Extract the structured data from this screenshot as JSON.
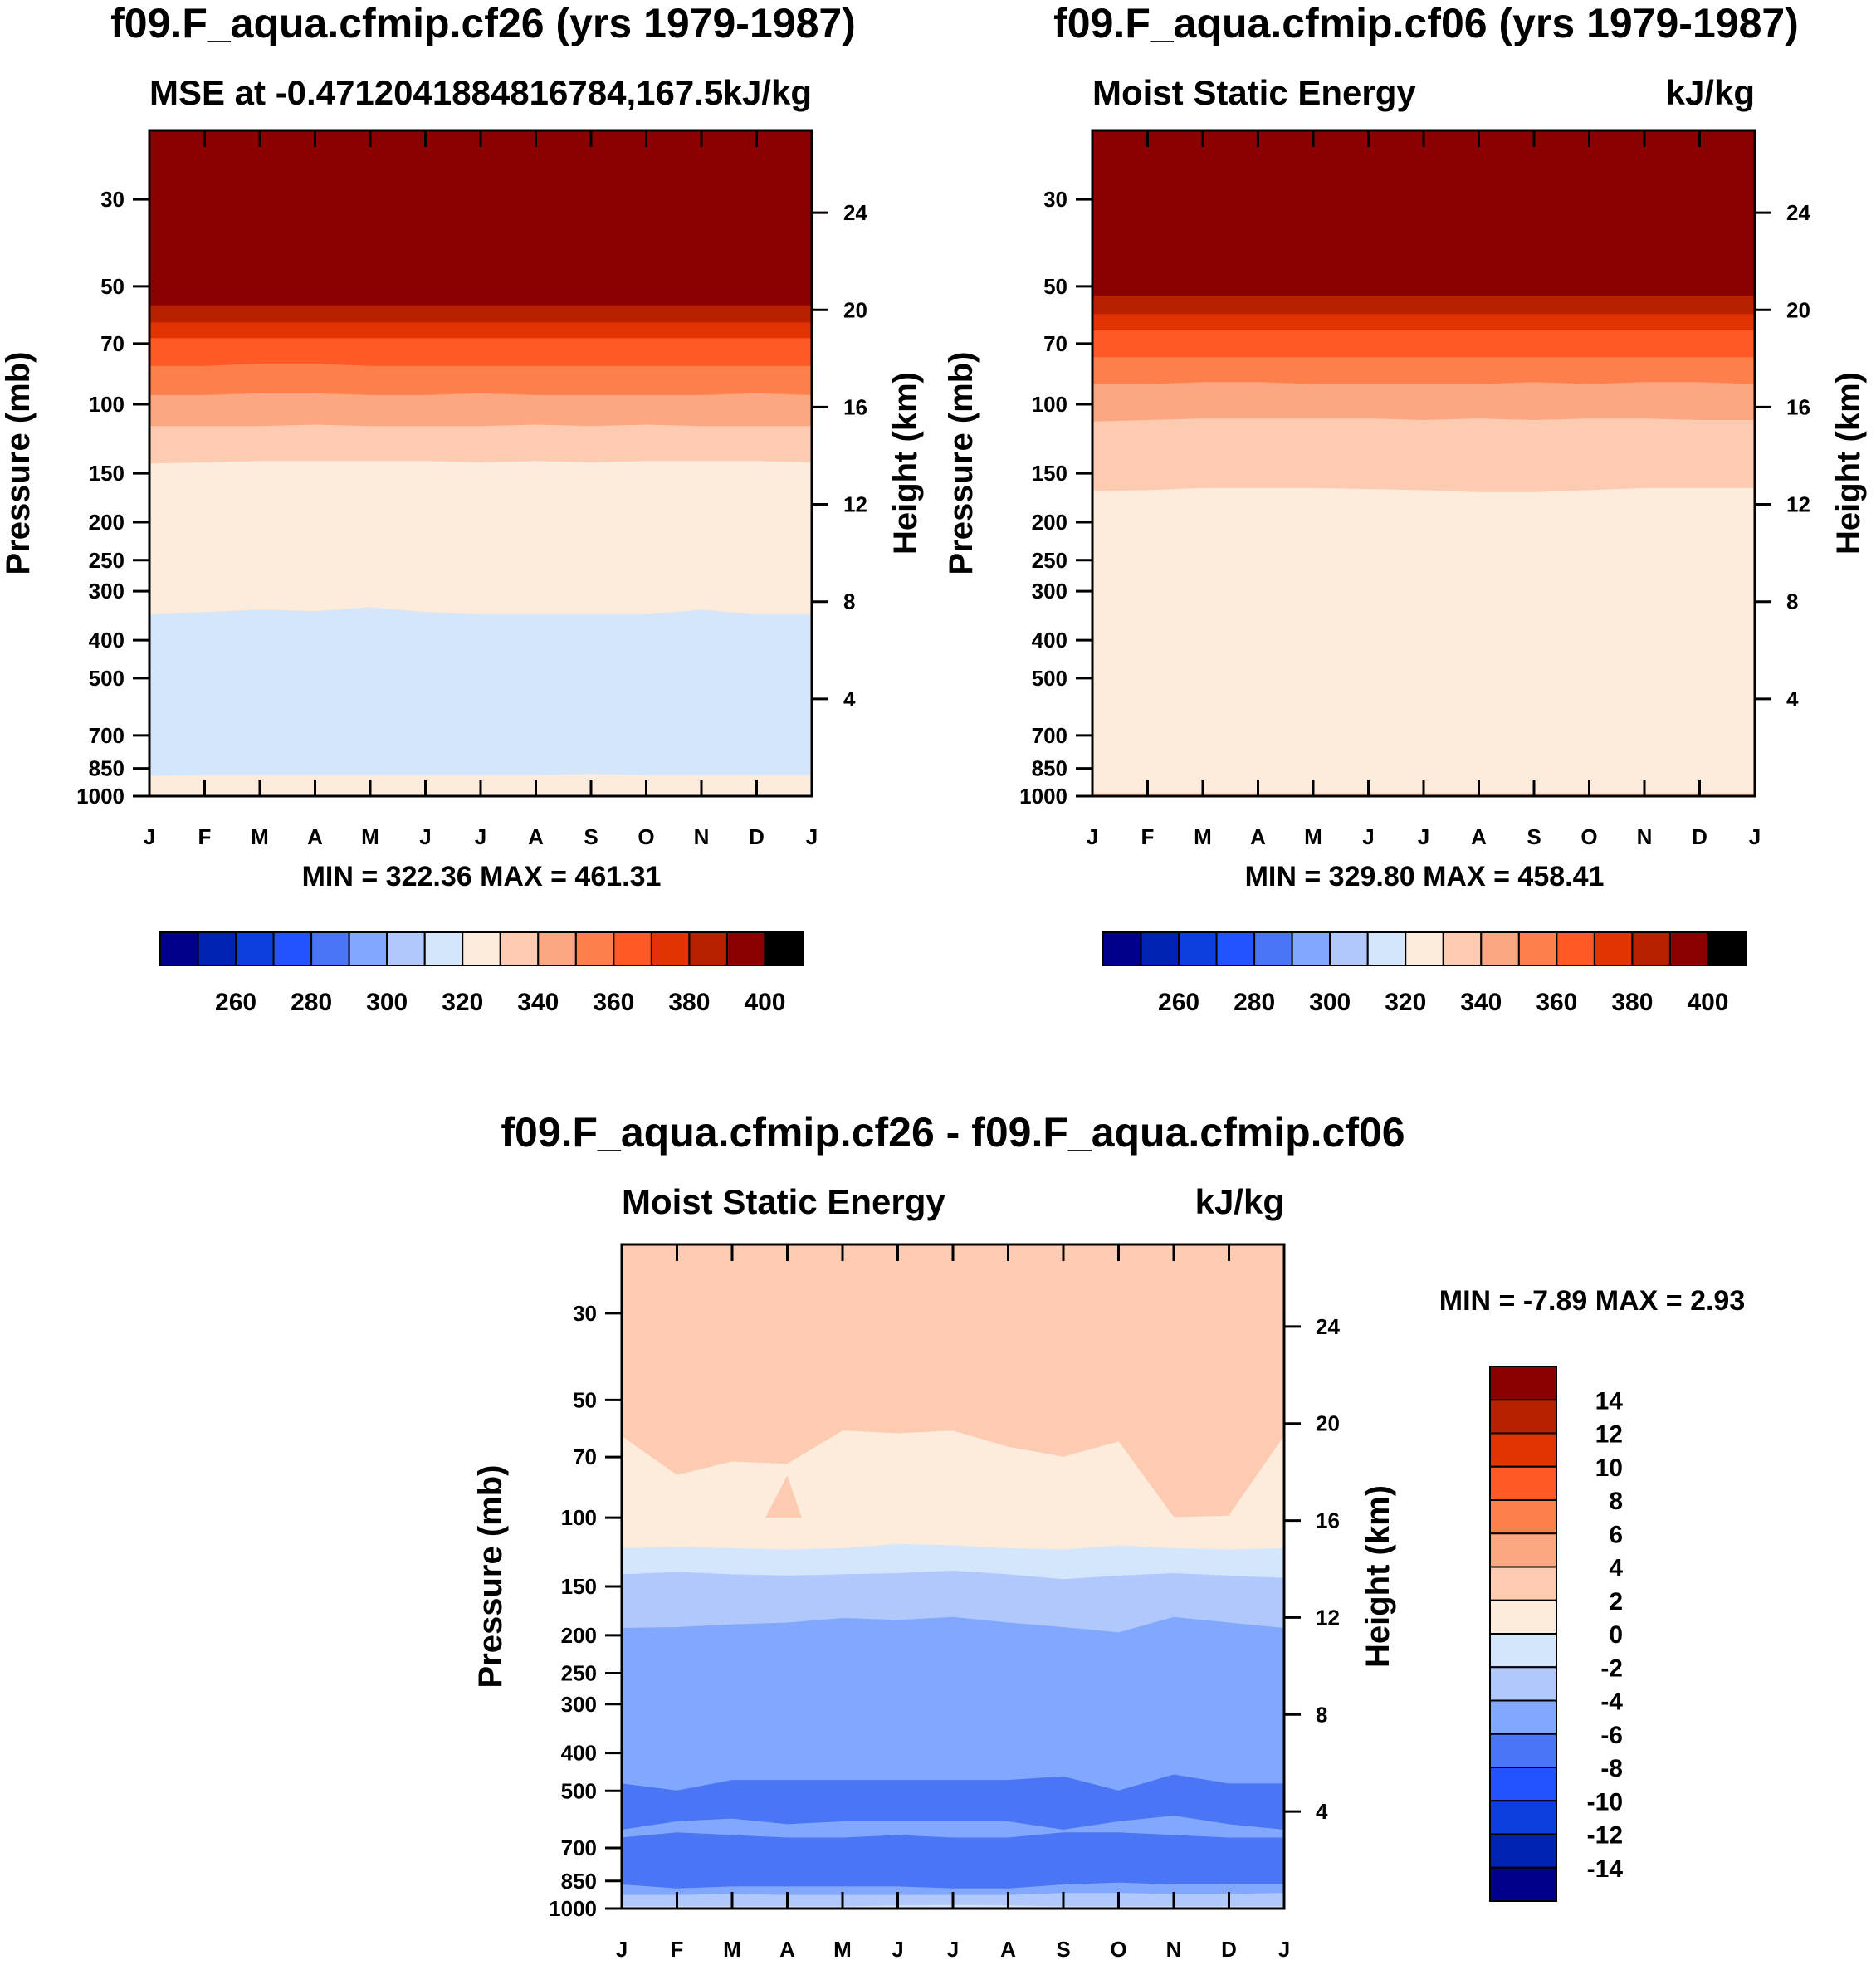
{
  "colors": {
    "fill_levels": [
      "#00008b",
      "#0022b4",
      "#0c3edd",
      "#2353ff",
      "#4a76f5",
      "#82a8fd",
      "#b0c8fc",
      "#d4e6fc",
      "#fdebdb",
      "#fdcbb1",
      "#fca782",
      "#fd7f4b",
      "#fe5926",
      "#e23304",
      "#b72100",
      "#8b0000"
    ],
    "frame": "#000000",
    "background": "#ffffff"
  },
  "chart_data": [
    {
      "type": "contour-time-height",
      "title": "f09.F_aqua.cfmip.cf26 (yrs 1979-1987)",
      "subtitle_left": "MSE at -0.4712041884816784,167.5",
      "subtitle_right": "kJ/kg",
      "xlabel": "",
      "ylabel": "Pressure (mb)",
      "y2label": "Height (km)",
      "x_ticks": [
        "J",
        "F",
        "M",
        "A",
        "M",
        "J",
        "J",
        "A",
        "S",
        "O",
        "N",
        "D",
        "J"
      ],
      "pressure_ticks": [
        30,
        50,
        70,
        100,
        150,
        200,
        250,
        300,
        400,
        500,
        700,
        850,
        1000
      ],
      "height_ticks": [
        24,
        20,
        16,
        12,
        8,
        4
      ],
      "ylim_mb": [
        20,
        1000
      ],
      "stats": "MIN = 322.36 MAX = 461.31",
      "contour_levels": [
        250,
        260,
        270,
        280,
        290,
        300,
        310,
        320,
        330,
        340,
        350,
        360,
        370,
        380,
        390,
        400
      ],
      "colorbar_labels": [
        "260",
        "280",
        "300",
        "320",
        "340",
        "360",
        "380",
        "400"
      ],
      "bands": [
        {
          "min": 400,
          "max": null,
          "level": 15,
          "top_mb": [
            20,
            20,
            20,
            20,
            20,
            20,
            20,
            20,
            20,
            20,
            20,
            20,
            20
          ]
        },
        {
          "min": 390,
          "max": 400,
          "level": 14,
          "top_mb": [
            56,
            56,
            56,
            56,
            56,
            56,
            56,
            56,
            56,
            56,
            56,
            56,
            56
          ]
        },
        {
          "min": 380,
          "max": 390,
          "level": 13,
          "top_mb": [
            62,
            62,
            62,
            62,
            62,
            62,
            62,
            62,
            62,
            62,
            62,
            62,
            62
          ]
        },
        {
          "min": 370,
          "max": 380,
          "level": 12,
          "top_mb": [
            68,
            68,
            68,
            68,
            68,
            68,
            68,
            68,
            68,
            68,
            68,
            68,
            68
          ]
        },
        {
          "min": 360,
          "max": 370,
          "level": 11,
          "top_mb": [
            80,
            80,
            79,
            79,
            80,
            80,
            80,
            80,
            80,
            80,
            80,
            80,
            80
          ]
        },
        {
          "min": 350,
          "max": 360,
          "level": 10,
          "top_mb": [
            95,
            95,
            94,
            94,
            95,
            95,
            94,
            95,
            95,
            95,
            95,
            94,
            95
          ]
        },
        {
          "min": 340,
          "max": 350,
          "level": 9,
          "top_mb": [
            114,
            114,
            114,
            113,
            114,
            114,
            114,
            113,
            114,
            113,
            114,
            114,
            114
          ]
        },
        {
          "min": 330,
          "max": 340,
          "level": 8,
          "top_mb": [
            142,
            141,
            140,
            140,
            140,
            140,
            141,
            140,
            141,
            140,
            140,
            140,
            141
          ]
        },
        {
          "min": 320,
          "max": 330,
          "level": 7,
          "top_mb": [
            345,
            340,
            335,
            338,
            330,
            340,
            345,
            345,
            345,
            345,
            335,
            345,
            345
          ]
        },
        {
          "min": 330,
          "max": 340,
          "level": 8,
          "top_mb": [
            890,
            885,
            885,
            885,
            885,
            885,
            885,
            885,
            880,
            885,
            885,
            885,
            885
          ]
        }
      ]
    },
    {
      "type": "contour-time-height",
      "title": "f09.F_aqua.cfmip.cf06 (yrs 1979-1987)",
      "subtitle_left": "Moist Static Energy",
      "subtitle_right": "kJ/kg",
      "xlabel": "",
      "ylabel": "Pressure (mb)",
      "y2label": "Height (km)",
      "x_ticks": [
        "J",
        "F",
        "M",
        "A",
        "M",
        "J",
        "J",
        "A",
        "S",
        "O",
        "N",
        "D",
        "J"
      ],
      "pressure_ticks": [
        30,
        50,
        70,
        100,
        150,
        200,
        250,
        300,
        400,
        500,
        700,
        850,
        1000
      ],
      "height_ticks": [
        24,
        20,
        16,
        12,
        8,
        4
      ],
      "ylim_mb": [
        20,
        1000
      ],
      "stats": "MIN = 329.80 MAX = 458.41",
      "contour_levels": [
        250,
        260,
        270,
        280,
        290,
        300,
        310,
        320,
        330,
        340,
        350,
        360,
        370,
        380,
        390,
        400
      ],
      "colorbar_labels": [
        "260",
        "280",
        "300",
        "320",
        "340",
        "360",
        "380",
        "400"
      ],
      "bands": [
        {
          "min": 400,
          "max": null,
          "level": 15,
          "top_mb": [
            20,
            20,
            20,
            20,
            20,
            20,
            20,
            20,
            20,
            20,
            20,
            20,
            20
          ]
        },
        {
          "min": 390,
          "max": 400,
          "level": 14,
          "top_mb": [
            53,
            53,
            53,
            53,
            53,
            53,
            53,
            53,
            53,
            53,
            53,
            53,
            53
          ]
        },
        {
          "min": 380,
          "max": 390,
          "level": 13,
          "top_mb": [
            59,
            59,
            59,
            59,
            59,
            59,
            59,
            59,
            59,
            59,
            59,
            59,
            59
          ]
        },
        {
          "min": 370,
          "max": 380,
          "level": 12,
          "top_mb": [
            65,
            65,
            65,
            65,
            65,
            65,
            65,
            65,
            65,
            65,
            65,
            65,
            65
          ]
        },
        {
          "min": 360,
          "max": 370,
          "level": 11,
          "top_mb": [
            76,
            76,
            76,
            76,
            76,
            76,
            76,
            76,
            76,
            76,
            76,
            76,
            76
          ]
        },
        {
          "min": 350,
          "max": 360,
          "level": 10,
          "top_mb": [
            89,
            89,
            88,
            88,
            89,
            89,
            89,
            89,
            88,
            89,
            88,
            88,
            89
          ]
        },
        {
          "min": 340,
          "max": 350,
          "level": 9,
          "top_mb": [
            111,
            110,
            109,
            109,
            109,
            109,
            110,
            109,
            110,
            109,
            109,
            110,
            110
          ]
        },
        {
          "min": 330,
          "max": 340,
          "level": 8,
          "top_mb": [
            167,
            166,
            164,
            164,
            164,
            165,
            166,
            168,
            168,
            166,
            164,
            164,
            164
          ]
        },
        {
          "min": 340,
          "max": 350,
          "level": 9,
          "top_mb": [
            985,
            985,
            985,
            985,
            985,
            985,
            985,
            985,
            985,
            985,
            985,
            985,
            985
          ]
        }
      ]
    },
    {
      "type": "contour-time-height",
      "title": "f09.F_aqua.cfmip.cf26 - f09.F_aqua.cfmip.cf06",
      "subtitle_left": "Moist Static Energy",
      "subtitle_right": "kJ/kg",
      "xlabel": "",
      "ylabel": "Pressure (mb)",
      "y2label": "Height (km)",
      "x_ticks": [
        "J",
        "F",
        "M",
        "A",
        "M",
        "J",
        "J",
        "A",
        "S",
        "O",
        "N",
        "D",
        "J"
      ],
      "pressure_ticks": [
        30,
        50,
        70,
        100,
        150,
        200,
        250,
        300,
        400,
        500,
        700,
        850,
        1000
      ],
      "height_ticks": [
        24,
        20,
        16,
        12,
        8,
        4
      ],
      "ylim_mb": [
        20,
        1000
      ],
      "stats": "MIN =  -7.89 MAX =   2.93",
      "contour_levels": [
        -14,
        -12,
        -10,
        -8,
        -6,
        -4,
        -2,
        0,
        2,
        4,
        6,
        8,
        10,
        12,
        14
      ],
      "colorbar_labels": [
        "14",
        "12",
        "10",
        "8",
        "6",
        "4",
        "2",
        "0",
        "-2",
        "-4",
        "-6",
        "-8",
        "-10",
        "-12",
        "-14"
      ],
      "bands": [
        {
          "min": 2,
          "max": 4,
          "level": 9,
          "top_mb": [
            20,
            20,
            20,
            20,
            20,
            20,
            20,
            20,
            20,
            20,
            20,
            20,
            20
          ]
        },
        {
          "min": 0,
          "max": 2,
          "level": 8,
          "top_mb": [
            62,
            78,
            72,
            73,
            60,
            61,
            60,
            66,
            70,
            64,
            100,
            99,
            62
          ]
        },
        {
          "min": -2,
          "max": 0,
          "level": 7,
          "top_mb": [
            120,
            119,
            120,
            121,
            120,
            117,
            118,
            120,
            121,
            118,
            120,
            121,
            120
          ]
        },
        {
          "min": -4,
          "max": -2,
          "level": 6,
          "top_mb": [
            140,
            138,
            140,
            141,
            140,
            139,
            137,
            140,
            144,
            141,
            139,
            141,
            143
          ]
        },
        {
          "min": -6,
          "max": -4,
          "level": 5,
          "top_mb": [
            192,
            191,
            188,
            186,
            181,
            183,
            180,
            186,
            191,
            197,
            180,
            186,
            192
          ]
        },
        {
          "min": -8,
          "max": -6,
          "level": 4,
          "top_mb": [
            480,
            500,
            470,
            470,
            470,
            470,
            470,
            470,
            460,
            500,
            455,
            480,
            480
          ]
        },
        {
          "min": -6,
          "max": -4,
          "level": 5,
          "top_mb": [
            630,
            600,
            590,
            610,
            600,
            600,
            600,
            600,
            630,
            600,
            580,
            610,
            630
          ]
        },
        {
          "min": -8,
          "max": -6,
          "level": 4,
          "top_mb": [
            660,
            640,
            650,
            660,
            660,
            650,
            660,
            660,
            640,
            640,
            650,
            660,
            660
          ]
        },
        {
          "min": -6,
          "max": -4,
          "level": 5,
          "top_mb": [
            870,
            890,
            880,
            880,
            880,
            880,
            890,
            890,
            870,
            860,
            870,
            870,
            870
          ]
        },
        {
          "min": -4,
          "max": -2,
          "level": 6,
          "top_mb": [
            925,
            925,
            920,
            925,
            925,
            925,
            925,
            925,
            915,
            915,
            920,
            920,
            915
          ]
        },
        {
          "min": -2,
          "max": 0,
          "level": 7,
          "top_mb": [
            990,
            990,
            990,
            990,
            990,
            985,
            982,
            985,
            990,
            990,
            990,
            990,
            990
          ]
        }
      ],
      "patches": [
        {
          "level": 9,
          "value": "2 to 4",
          "points_mb": [
            [
              2.6,
              100
            ],
            [
              3.0,
              78
            ],
            [
              3.26,
              100
            ]
          ]
        }
      ]
    }
  ]
}
